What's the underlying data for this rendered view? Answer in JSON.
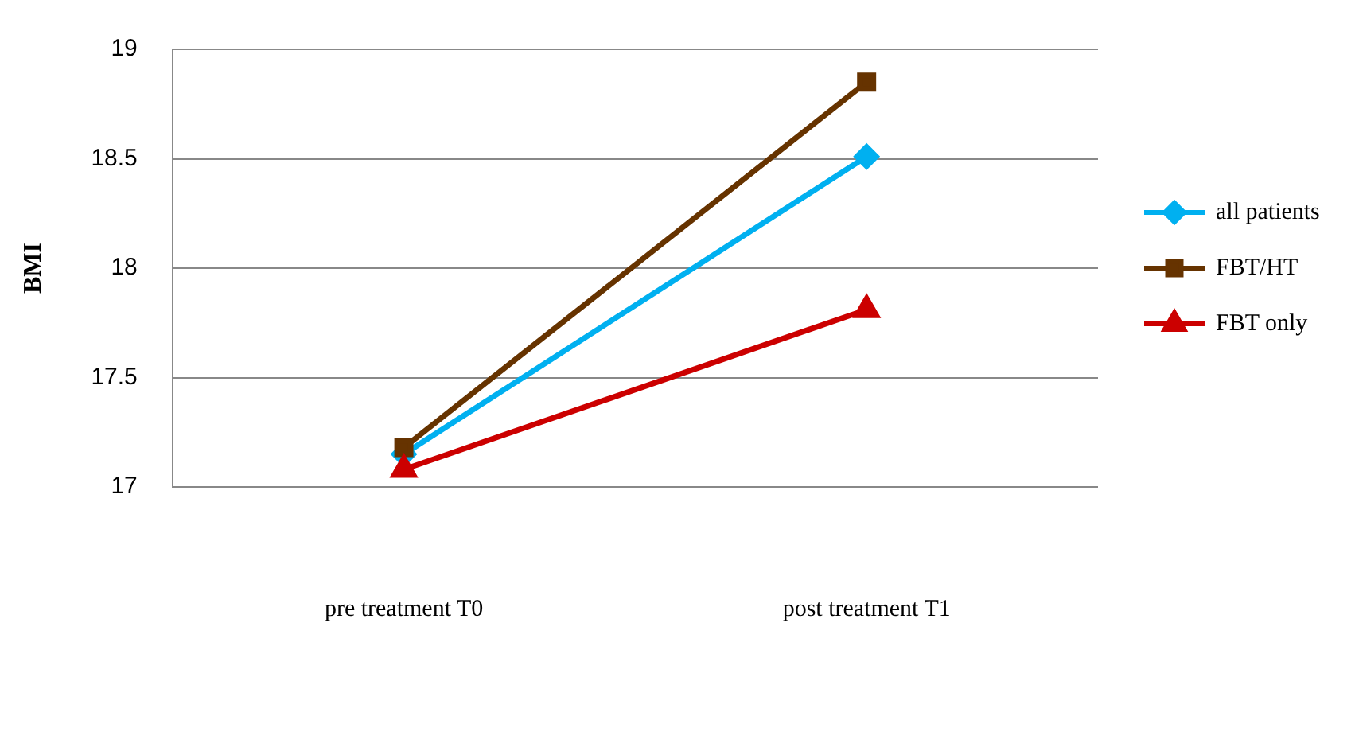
{
  "chart_data": {
    "type": "line",
    "ylabel": "BMI",
    "categories": [
      "pre treatment T0",
      "post treatment T1"
    ],
    "ylim": [
      17,
      19
    ],
    "yticks": [
      17,
      17.5,
      18,
      18.5,
      19
    ],
    "grid": "y",
    "legend": "right",
    "line_style": "solid",
    "series": [
      {
        "name": "all patients",
        "color": "#00b0f0",
        "marker": "diamond",
        "values": [
          17.15,
          18.51
        ]
      },
      {
        "name": "FBT/HT",
        "color": "#663300",
        "marker": "square",
        "values": [
          17.18,
          18.85
        ]
      },
      {
        "name": "FBT only",
        "color": "#cc0000",
        "marker": "triangle",
        "values": [
          17.08,
          17.81
        ]
      }
    ]
  }
}
